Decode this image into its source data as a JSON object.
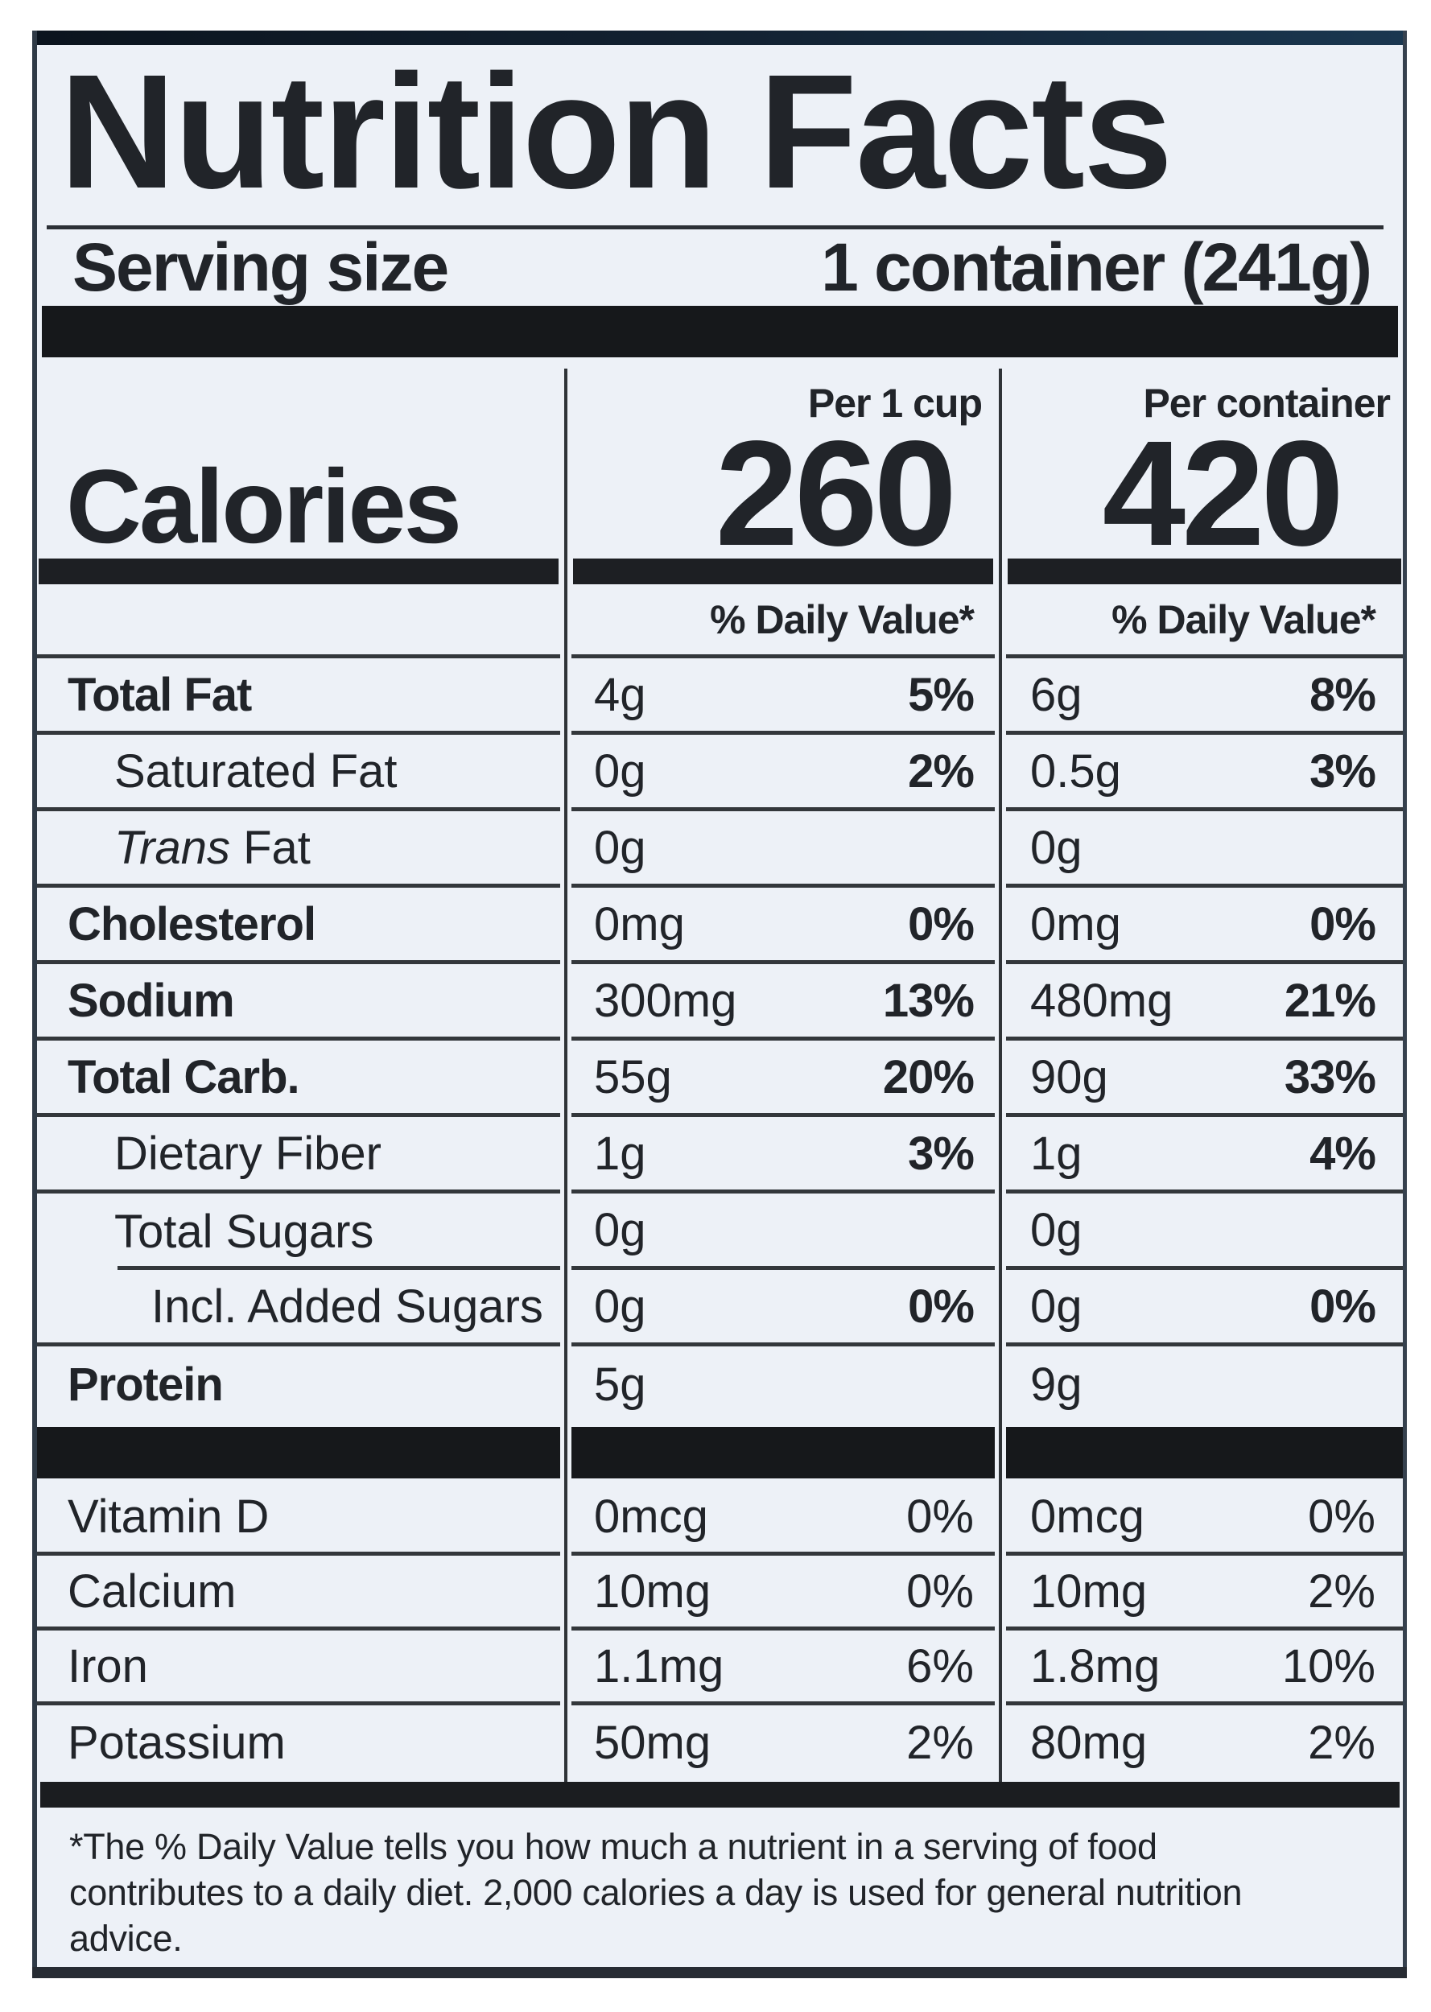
{
  "title": "Nutrition Facts",
  "serving": {
    "label": "Serving size",
    "value": "1 container (241g)"
  },
  "calories": {
    "label": "Calories",
    "columns": [
      {
        "header": "Per 1 cup",
        "value": "260",
        "dv_header": "% Daily Value*"
      },
      {
        "header": "Per container",
        "value": "420",
        "dv_header": "% Daily Value*"
      }
    ]
  },
  "nutrients": [
    {
      "name": "Total Fat",
      "bold": true,
      "indent": 0,
      "cup_amt": "4g",
      "cup_dv": "5%",
      "cont_amt": "6g",
      "cont_dv": "8%"
    },
    {
      "name": "Saturated Fat",
      "bold": false,
      "indent": 1,
      "cup_amt": "0g",
      "cup_dv": "2%",
      "cont_amt": "0.5g",
      "cont_dv": "3%"
    },
    {
      "name": "Trans Fat",
      "bold": false,
      "indent": 1,
      "italic_first": true,
      "cup_amt": "0g",
      "cup_dv": "",
      "cont_amt": "0g",
      "cont_dv": ""
    },
    {
      "name": "Cholesterol",
      "bold": true,
      "indent": 0,
      "cup_amt": "0mg",
      "cup_dv": "0%",
      "cont_amt": "0mg",
      "cont_dv": "0%"
    },
    {
      "name": "Sodium",
      "bold": true,
      "indent": 0,
      "cup_amt": "300mg",
      "cup_dv": "13%",
      "cont_amt": "480mg",
      "cont_dv": "21%"
    },
    {
      "name": "Total Carb.",
      "bold": true,
      "indent": 0,
      "cup_amt": "55g",
      "cup_dv": "20%",
      "cont_amt": "90g",
      "cont_dv": "33%"
    },
    {
      "name": "Dietary Fiber",
      "bold": false,
      "indent": 1,
      "cup_amt": "1g",
      "cup_dv": "3%",
      "cont_amt": "1g",
      "cont_dv": "4%"
    },
    {
      "name": "Total Sugars",
      "bold": false,
      "indent": 1,
      "rule_indent": true,
      "cup_amt": "0g",
      "cup_dv": "",
      "cont_amt": "0g",
      "cont_dv": ""
    },
    {
      "name": "Incl. Added Sugars",
      "bold": false,
      "indent": 2,
      "cup_amt": "0g",
      "cup_dv": "0%",
      "cont_amt": "0g",
      "cont_dv": "0%"
    },
    {
      "name": "Protein",
      "bold": true,
      "indent": 0,
      "no_rule": true,
      "cup_amt": "5g",
      "cup_dv": "",
      "cont_amt": "9g",
      "cont_dv": ""
    }
  ],
  "micronutrients": [
    {
      "name": "Vitamin D",
      "cup_amt": "0mcg",
      "cup_dv": "0%",
      "cont_amt": "0mcg",
      "cont_dv": "0%"
    },
    {
      "name": "Calcium",
      "cup_amt": "10mg",
      "cup_dv": "0%",
      "cont_amt": "10mg",
      "cont_dv": "2%"
    },
    {
      "name": "Iron",
      "cup_amt": "1.1mg",
      "cup_dv": "6%",
      "cont_amt": "1.8mg",
      "cont_dv": "10%"
    },
    {
      "name": "Potassium",
      "no_rule": true,
      "cup_amt": "50mg",
      "cup_dv": "2%",
      "cont_amt": "80mg",
      "cont_dv": "2%"
    }
  ],
  "footnote": "*The % Daily Value tells you how much a nutrient in a serving of food contributes to a daily diet. 2,000 calories a day is used for general nutrition advice.",
  "colors": {
    "background": "#edf1f7",
    "ink": "#212429",
    "rule": "#33373b",
    "band": "#101b28"
  }
}
